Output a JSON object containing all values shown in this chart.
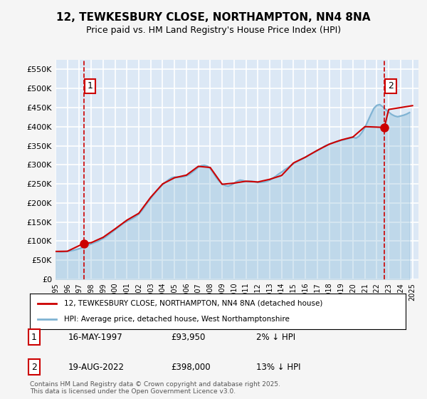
{
  "title_line1": "12, TEWKESBURY CLOSE, NORTHAMPTON, NN4 8NA",
  "title_line2": "Price paid vs. HM Land Registry's House Price Index (HPI)",
  "ylabel": "",
  "xlim_start": 1995.0,
  "xlim_end": 2025.5,
  "ylim_min": 0,
  "ylim_max": 575000,
  "yticks": [
    0,
    50000,
    100000,
    150000,
    200000,
    250000,
    300000,
    350000,
    400000,
    450000,
    500000,
    550000
  ],
  "ytick_labels": [
    "£0",
    "£50K",
    "£100K",
    "£150K",
    "£200K",
    "£250K",
    "£300K",
    "£350K",
    "£400K",
    "£450K",
    "£500K",
    "£550K"
  ],
  "xticks": [
    1995,
    1996,
    1997,
    1998,
    1999,
    2000,
    2001,
    2002,
    2003,
    2004,
    2005,
    2006,
    2007,
    2008,
    2009,
    2010,
    2011,
    2012,
    2013,
    2014,
    2015,
    2016,
    2017,
    2018,
    2019,
    2020,
    2021,
    2022,
    2023,
    2024,
    2025
  ],
  "bg_color": "#e8f0f8",
  "plot_bg_color": "#dce8f5",
  "grid_color": "#ffffff",
  "hpi_color": "#7fb3d3",
  "price_color": "#cc0000",
  "marker_color": "#cc0000",
  "vline_color": "#cc0000",
  "sale1_x": 1997.371,
  "sale1_y": 93950,
  "sale1_label": "1",
  "sale2_x": 2022.633,
  "sale2_y": 398000,
  "sale2_label": "2",
  "legend_line1": "12, TEWKESBURY CLOSE, NORTHAMPTON, NN4 8NA (detached house)",
  "legend_line2": "HPI: Average price, detached house, West Northamptonshire",
  "annotation1_date": "16-MAY-1997",
  "annotation1_price": "£93,950",
  "annotation1_hpi": "2% ↓ HPI",
  "annotation2_date": "19-AUG-2022",
  "annotation2_price": "£398,000",
  "annotation2_hpi": "13% ↓ HPI",
  "footer": "Contains HM Land Registry data © Crown copyright and database right 2025.\nThis data is licensed under the Open Government Licence v3.0.",
  "hpi_data_x": [
    1995.0,
    1995.25,
    1995.5,
    1995.75,
    1996.0,
    1996.25,
    1996.5,
    1996.75,
    1997.0,
    1997.25,
    1997.5,
    1997.75,
    1998.0,
    1998.25,
    1998.5,
    1998.75,
    1999.0,
    1999.25,
    1999.5,
    1999.75,
    2000.0,
    2000.25,
    2000.5,
    2000.75,
    2001.0,
    2001.25,
    2001.5,
    2001.75,
    2002.0,
    2002.25,
    2002.5,
    2002.75,
    2003.0,
    2003.25,
    2003.5,
    2003.75,
    2004.0,
    2004.25,
    2004.5,
    2004.75,
    2005.0,
    2005.25,
    2005.5,
    2005.75,
    2006.0,
    2006.25,
    2006.5,
    2006.75,
    2007.0,
    2007.25,
    2007.5,
    2007.75,
    2008.0,
    2008.25,
    2008.5,
    2008.75,
    2009.0,
    2009.25,
    2009.5,
    2009.75,
    2010.0,
    2010.25,
    2010.5,
    2010.75,
    2011.0,
    2011.25,
    2011.5,
    2011.75,
    2012.0,
    2012.25,
    2012.5,
    2012.75,
    2013.0,
    2013.25,
    2013.5,
    2013.75,
    2014.0,
    2014.25,
    2014.5,
    2014.75,
    2015.0,
    2015.25,
    2015.5,
    2015.75,
    2016.0,
    2016.25,
    2016.5,
    2016.75,
    2017.0,
    2017.25,
    2017.5,
    2017.75,
    2018.0,
    2018.25,
    2018.5,
    2018.75,
    2019.0,
    2019.25,
    2019.5,
    2019.75,
    2020.0,
    2020.25,
    2020.5,
    2020.75,
    2021.0,
    2021.25,
    2021.5,
    2021.75,
    2022.0,
    2022.25,
    2022.5,
    2022.75,
    2023.0,
    2023.25,
    2023.5,
    2023.75,
    2024.0,
    2024.25,
    2024.5,
    2024.75
  ],
  "hpi_data_y": [
    73000,
    72500,
    72000,
    72500,
    73500,
    74500,
    76000,
    78000,
    80500,
    83000,
    87000,
    90000,
    93000,
    96000,
    99000,
    103000,
    107000,
    112000,
    118000,
    124000,
    130000,
    136000,
    142000,
    148000,
    152000,
    156000,
    160000,
    165000,
    171000,
    180000,
    191000,
    202000,
    212000,
    222000,
    232000,
    240000,
    248000,
    255000,
    261000,
    266000,
    268000,
    268000,
    268000,
    269000,
    271000,
    275000,
    281000,
    287000,
    294000,
    298000,
    299000,
    297000,
    290000,
    279000,
    267000,
    257000,
    250000,
    246000,
    244000,
    247000,
    252000,
    257000,
    260000,
    259000,
    256000,
    257000,
    257000,
    256000,
    254000,
    254000,
    255000,
    257000,
    260000,
    265000,
    270000,
    276000,
    281000,
    287000,
    292000,
    298000,
    303000,
    308000,
    312000,
    316000,
    320000,
    325000,
    329000,
    333000,
    337000,
    342000,
    347000,
    351000,
    354000,
    357000,
    360000,
    362000,
    364000,
    366000,
    368000,
    370000,
    372000,
    370000,
    375000,
    385000,
    398000,
    415000,
    432000,
    448000,
    456000,
    458000,
    452000,
    445000,
    438000,
    432000,
    428000,
    426000,
    428000,
    430000,
    433000,
    437000
  ],
  "price_series_x": [
    1995.0,
    1996.0,
    1997.371,
    1998.0,
    1999.0,
    2000.0,
    2001.0,
    2002.0,
    2003.0,
    2004.0,
    2005.0,
    2006.0,
    2007.0,
    2008.0,
    2009.0,
    2010.0,
    2011.0,
    2012.0,
    2013.0,
    2014.0,
    2015.0,
    2016.0,
    2017.0,
    2018.0,
    2019.0,
    2020.0,
    2021.0,
    2022.633,
    2023.0,
    2024.0,
    2025.0
  ],
  "price_series_y": [
    73000,
    73500,
    93950,
    96000,
    110000,
    132000,
    155000,
    173000,
    215000,
    250000,
    266000,
    273000,
    296000,
    293000,
    249000,
    252000,
    257000,
    255000,
    262000,
    272000,
    305000,
    320000,
    338000,
    354000,
    365000,
    373000,
    400000,
    398000,
    445000,
    450000,
    455000
  ]
}
